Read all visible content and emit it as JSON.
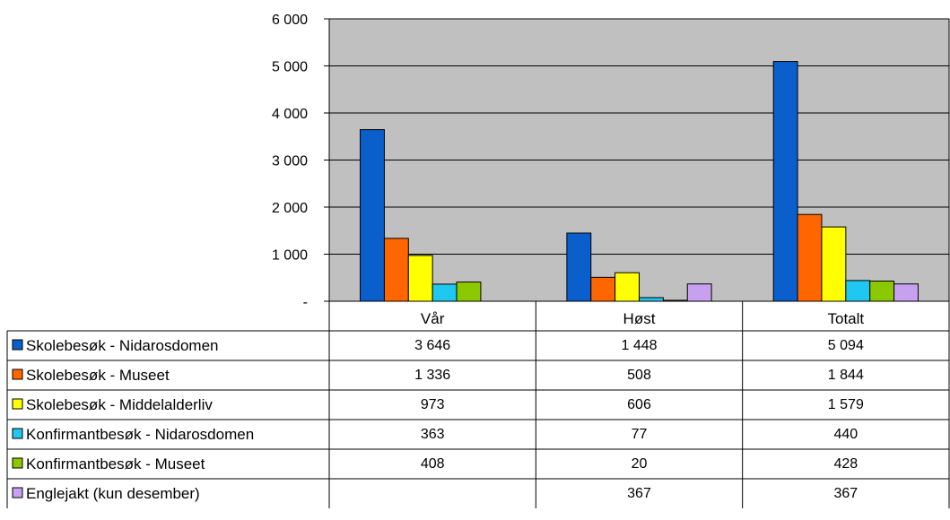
{
  "chart_data": {
    "type": "bar",
    "categories": [
      "Vår",
      "Høst",
      "Totalt"
    ],
    "series": [
      {
        "name": "Skolebesøk - Nidarosdomen",
        "color": "#0a5fcc",
        "values": [
          3646,
          1448,
          5094
        ],
        "labels": [
          "3 646",
          "1 448",
          "5 094"
        ]
      },
      {
        "name": "Skolebesøk - Museet",
        "color": "#ff6600",
        "values": [
          1336,
          508,
          1844
        ],
        "labels": [
          "1 336",
          "508",
          "1 844"
        ]
      },
      {
        "name": "Skolebesøk - Middelalderliv",
        "color": "#ffff00",
        "values": [
          973,
          606,
          1579
        ],
        "labels": [
          "973",
          "606",
          "1 579"
        ]
      },
      {
        "name": "Konfirmantbesøk - Nidarosdomen",
        "color": "#1ec8f0",
        "values": [
          363,
          77,
          440
        ],
        "labels": [
          "363",
          "77",
          "440"
        ]
      },
      {
        "name": "Konfirmantbesøk - Museet",
        "color": "#8cc800",
        "values": [
          408,
          20,
          428
        ],
        "labels": [
          "408",
          "20",
          "428"
        ]
      },
      {
        "name": "Englejakt (kun desember)",
        "color": "#c8a0f0",
        "values": [
          0,
          367,
          367
        ],
        "labels": [
          "",
          "367",
          "367"
        ]
      }
    ],
    "ylim": [
      0,
      6000
    ],
    "yticks": [
      0,
      1000,
      2000,
      3000,
      4000,
      5000,
      6000
    ],
    "ytick_labels": [
      "-",
      "1 000",
      "2 000",
      "3 000",
      "4 000",
      "5 000",
      "6 000"
    ],
    "grid": true,
    "plot_background": "#c0c0c0",
    "legend": "data-table"
  }
}
